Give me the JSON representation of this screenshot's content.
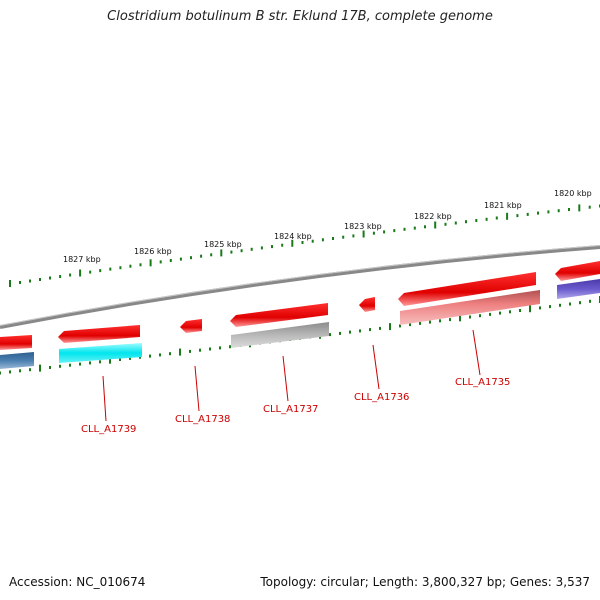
{
  "title": "Clostridium botulinum B str. Eklund 17B, complete genome",
  "accession": "Accession: NC_010674",
  "summary": "Topology: circular; Length: 3,800,327 bp; Genes: 3,537",
  "kbp_ticks": [
    "1827 kbp",
    "1826 kbp",
    "1825 kbp",
    "1824 kbp",
    "1823 kbp",
    "1822 kbp",
    "1821 kbp",
    "1820 kbp"
  ],
  "gene_labels": [
    "CLL_A1739",
    "CLL_A1738",
    "CLL_A1737",
    "CLL_A1736",
    "CLL_A1735"
  ],
  "colors": {
    "backbone": "#8a8a8a",
    "cds": "#ee1111",
    "tick": "#1a7a1a",
    "label": "#cc0000",
    "cyan_feature": "#00e5ee",
    "grey_feature": "#b0b0b0",
    "pink_feature": "#ee8080",
    "blue_feature": "#4a7fb0",
    "purple_feature": "#6a5acd"
  }
}
